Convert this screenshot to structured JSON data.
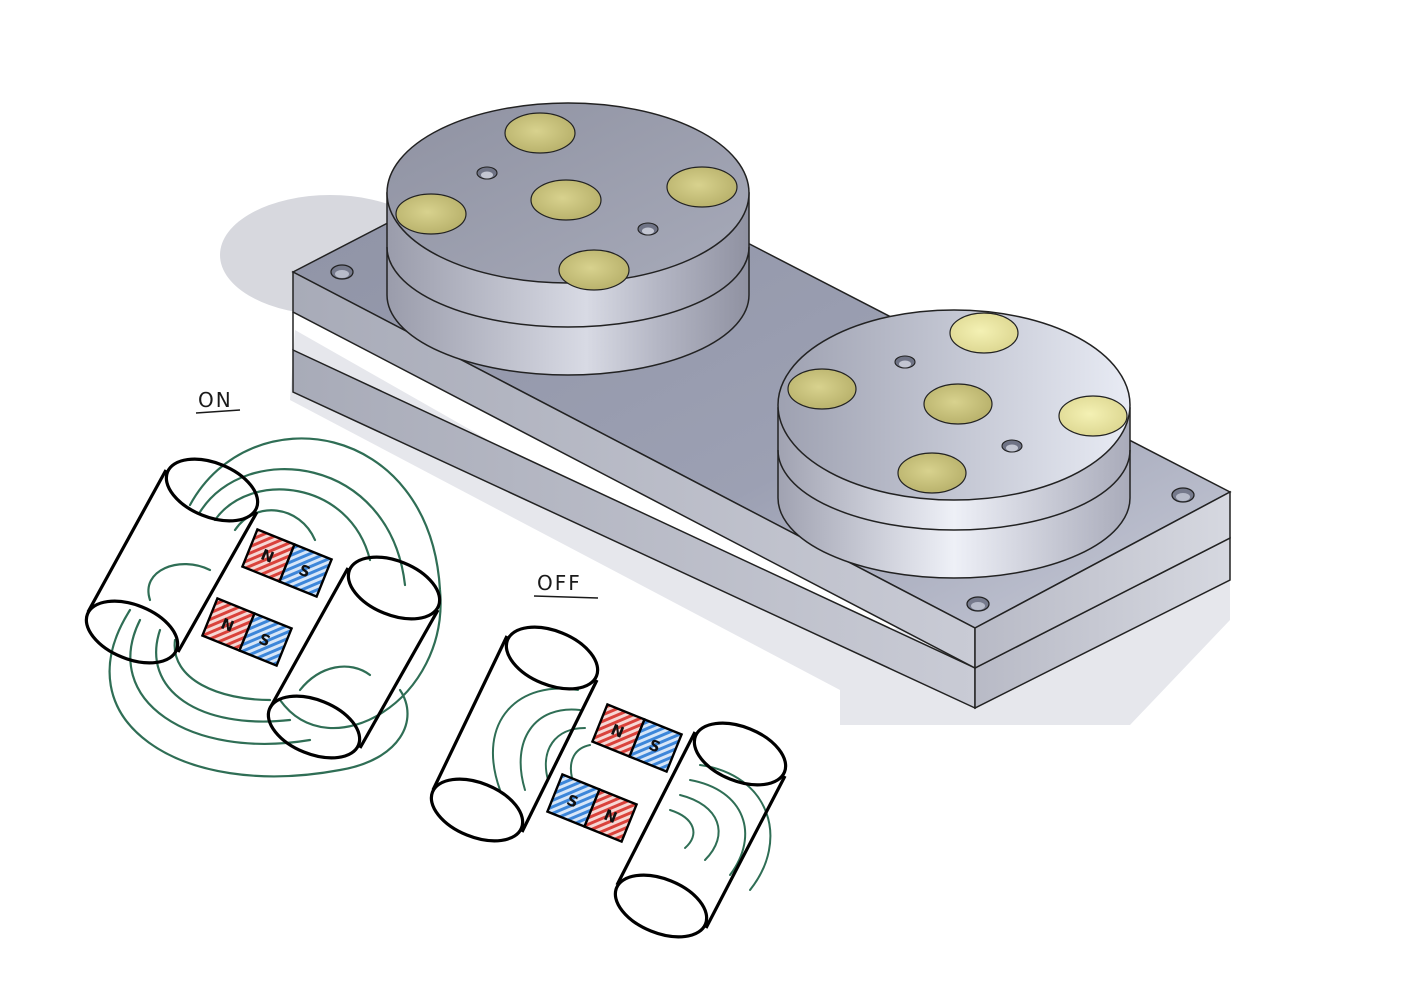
{
  "labels": {
    "on": "ON",
    "off": "OFF"
  },
  "magnets": {
    "on_top": {
      "left": "N",
      "right": "S"
    },
    "on_bottom": {
      "left": "N",
      "right": "S"
    },
    "off_top": {
      "left": "N",
      "right": "S"
    },
    "off_bottom": {
      "left": "S",
      "right": "N"
    }
  },
  "colors": {
    "north": "#d9423b",
    "south": "#3d86d9",
    "field_lines": "#2f6e55",
    "insert": "#c9c27a",
    "steel": "#9fa3b4"
  }
}
